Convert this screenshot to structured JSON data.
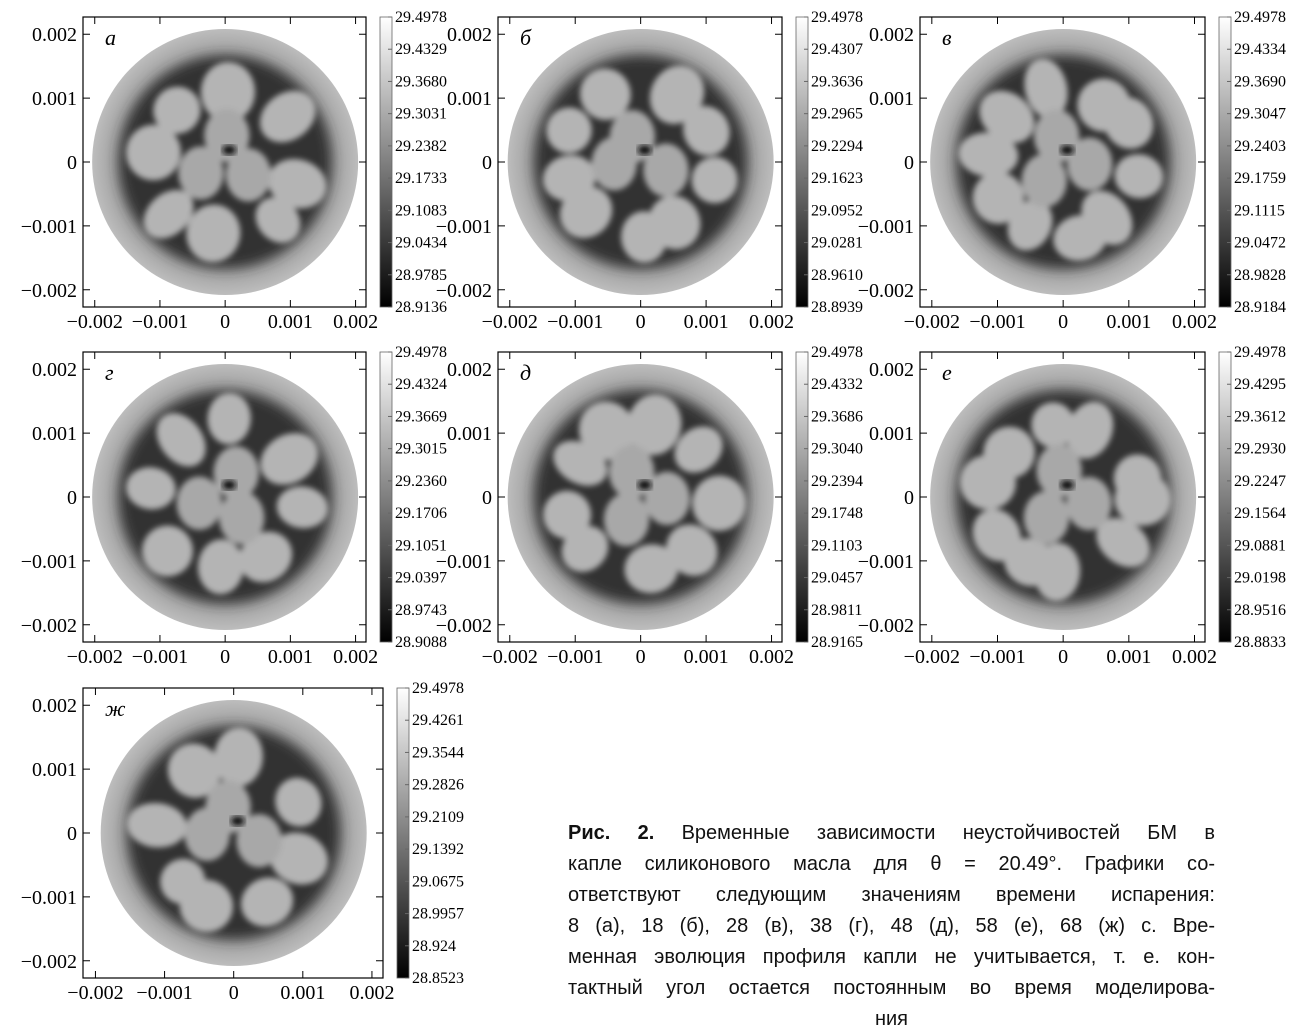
{
  "chart_data": [
    {
      "type": "heatmap",
      "label": "а",
      "xlim": [
        -0.00218,
        0.00216
      ],
      "ylim": [
        -0.00227,
        0.00227
      ],
      "xticks": [
        {
          "value": -0.002,
          "label": "−0.002"
        },
        {
          "value": -0.001,
          "label": "−0.001"
        },
        0,
        0.001,
        0.002
      ],
      "yticks": [
        {
          "value": -0.002,
          "label": "−0.002"
        },
        {
          "value": -0.001,
          "label": "−0.001"
        },
        0,
        0.001,
        0.002
      ],
      "colorbar_ticks": [
        29.4978,
        29.4329,
        {
          "value": 29.368,
          "label": "29.3680"
        },
        29.3031,
        29.2382,
        29.1733,
        29.1083,
        29.0434,
        28.9785,
        28.9136
      ]
    },
    {
      "type": "heatmap",
      "label": "б",
      "xlim": [
        -0.00218,
        0.00216
      ],
      "ylim": [
        -0.00227,
        0.00227
      ],
      "xticks": [
        {
          "value": -0.002,
          "label": "−0.002"
        },
        {
          "value": -0.001,
          "label": "−0.001"
        },
        0,
        0.001,
        0.002
      ],
      "yticks": [
        {
          "value": -0.002,
          "label": "−0.002"
        },
        {
          "value": -0.001,
          "label": "−0.001"
        },
        0,
        0.001,
        0.002
      ],
      "colorbar_ticks": [
        29.4978,
        29.4307,
        29.3636,
        29.2965,
        29.2294,
        29.1623,
        29.0952,
        29.0281,
        {
          "value": 28.961,
          "label": "28.9610"
        },
        28.8939
      ]
    },
    {
      "type": "heatmap",
      "label": "в",
      "xlim": [
        -0.00218,
        0.00216
      ],
      "ylim": [
        -0.00227,
        0.00227
      ],
      "xticks": [
        {
          "value": -0.002,
          "label": "−0.002"
        },
        {
          "value": -0.001,
          "label": "−0.001"
        },
        0,
        0.001,
        0.002
      ],
      "yticks": [
        {
          "value": -0.002,
          "label": "−0.002"
        },
        {
          "value": -0.001,
          "label": "−0.001"
        },
        0,
        0.001,
        0.002
      ],
      "colorbar_ticks": [
        29.4978,
        29.4334,
        {
          "value": 29.369,
          "label": "29.3690"
        },
        29.3047,
        29.2403,
        29.1759,
        29.1115,
        29.0472,
        28.9828,
        28.9184
      ]
    },
    {
      "type": "heatmap",
      "label": "г",
      "xlim": [
        -0.00218,
        0.00216
      ],
      "ylim": [
        -0.00227,
        0.00227
      ],
      "xticks": [
        {
          "value": -0.002,
          "label": "−0.002"
        },
        {
          "value": -0.001,
          "label": "−0.001"
        },
        0,
        0.001,
        0.002
      ],
      "yticks": [
        {
          "value": -0.002,
          "label": "−0.002"
        },
        {
          "value": -0.001,
          "label": "−0.001"
        },
        0,
        0.001,
        0.002
      ],
      "colorbar_ticks": [
        29.4978,
        29.4324,
        29.3669,
        29.3015,
        {
          "value": 29.236,
          "label": "29.2360"
        },
        29.1706,
        29.1051,
        29.0397,
        28.9743,
        28.9088
      ]
    },
    {
      "type": "heatmap",
      "label": "д",
      "xlim": [
        -0.00218,
        0.00216
      ],
      "ylim": [
        -0.00227,
        0.00227
      ],
      "xticks": [
        {
          "value": -0.002,
          "label": "−0.002"
        },
        {
          "value": -0.001,
          "label": "−0.001"
        },
        0,
        0.001,
        0.002
      ],
      "yticks": [
        {
          "value": -0.002,
          "label": "−0.002"
        },
        {
          "value": -0.001,
          "label": "−0.001"
        },
        0,
        0.001,
        0.002
      ],
      "colorbar_ticks": [
        29.4978,
        29.4332,
        29.3686,
        {
          "value": 29.304,
          "label": "29.3040"
        },
        29.2394,
        29.1748,
        29.1103,
        29.0457,
        28.9811,
        28.9165
      ]
    },
    {
      "type": "heatmap",
      "label": "е",
      "xlim": [
        -0.00218,
        0.00216
      ],
      "ylim": [
        -0.00227,
        0.00227
      ],
      "xticks": [
        {
          "value": -0.002,
          "label": "−0.002"
        },
        {
          "value": -0.001,
          "label": "−0.001"
        },
        0,
        0.001,
        0.002
      ],
      "yticks": [
        {
          "value": -0.002,
          "label": "−0.002"
        },
        {
          "value": -0.001,
          "label": "−0.001"
        },
        0,
        0.001,
        0.002
      ],
      "colorbar_ticks": [
        29.4978,
        29.4295,
        29.3612,
        {
          "value": 29.293,
          "label": "29.2930"
        },
        29.2247,
        29.1564,
        29.0881,
        29.0198,
        28.9516,
        28.8833
      ]
    },
    {
      "type": "heatmap",
      "label": "ж",
      "xlim": [
        -0.00218,
        0.00216
      ],
      "ylim": [
        -0.00227,
        0.00227
      ],
      "xticks": [
        {
          "value": -0.002,
          "label": "−0.002"
        },
        {
          "value": -0.001,
          "label": "−0.001"
        },
        0,
        0.001,
        0.002
      ],
      "yticks": [
        {
          "value": -0.002,
          "label": "−0.002"
        },
        {
          "value": -0.001,
          "label": "−0.001"
        },
        0,
        0.001,
        0.002
      ],
      "colorbar_ticks": [
        29.4978,
        29.4261,
        29.3544,
        29.2826,
        29.2109,
        29.1392,
        29.0675,
        28.9957,
        28.924,
        28.8523
      ]
    }
  ],
  "caption": {
    "label": "Рис. 2.",
    "lines": [
      "Временные зависимости неустойчивостей БМ в",
      "капле силиконового масла для θ = 20.49°. Графики со-",
      "ответствуют следующим значениям времени испарения:",
      "8 (а), 18 (б), 28 (в), 38 (г), 48 (д), 58 (е), 68 (ж) с. Вре-",
      "менная эволюция профиля капли не учитывается, т. е. кон-",
      "тактный угол остается постоянным во время моделирова-",
      "ния"
    ]
  }
}
